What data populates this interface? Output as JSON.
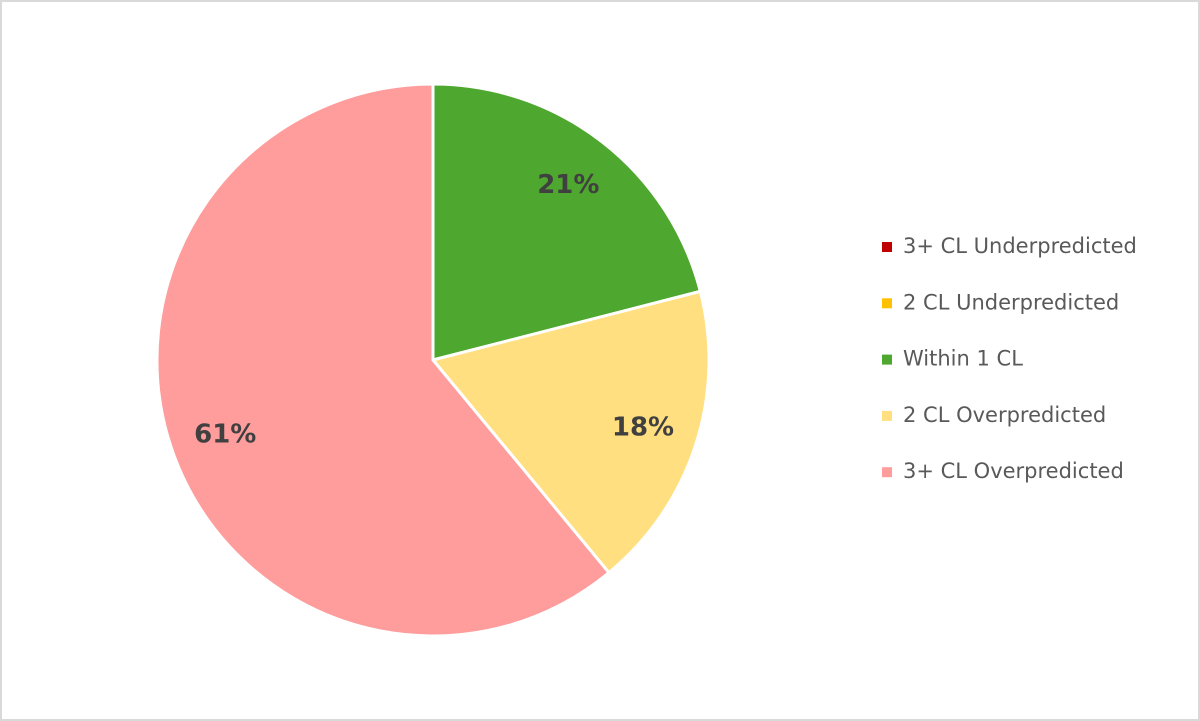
{
  "chart_data": {
    "type": "pie",
    "categories": [
      "3+ CL Underpredicted",
      "2 CL Underpredicted",
      "Within 1 CL",
      "2 CL Overpredicted",
      "3+ CL Overpredicted"
    ],
    "values": [
      0,
      0,
      21,
      18,
      61
    ],
    "value_labels": [
      null,
      null,
      "21%",
      "18%",
      "61%"
    ],
    "colors": [
      "#c00000",
      "#ffc000",
      "#4ea72e",
      "#ffdf80",
      "#ff9c9c"
    ],
    "legend": "right"
  }
}
